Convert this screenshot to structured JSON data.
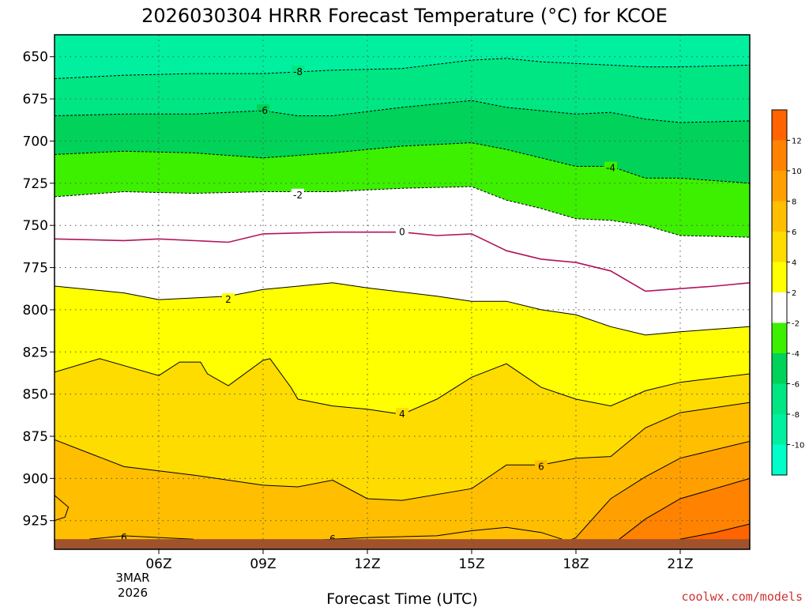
{
  "chart_data": {
    "type": "contour",
    "title": "2026030304 HRRR Forecast Temperature (°C) for KCOE",
    "xlabel": "Forecast Time (UTC)",
    "ylabel": "",
    "credit": "coolwx.com/models",
    "x_ticks": [
      "06Z",
      "09Z",
      "12Z",
      "15Z",
      "18Z",
      "21Z"
    ],
    "x_tick_hours": [
      6,
      9,
      12,
      15,
      18,
      21
    ],
    "x_date_lines": [
      "3MAR",
      "2026"
    ],
    "xlim_hours": [
      3,
      23
    ],
    "y_ticks": [
      650,
      675,
      700,
      725,
      750,
      775,
      800,
      825,
      850,
      875,
      900,
      925
    ],
    "ylim_hpa": [
      637,
      942
    ],
    "ground_hpa": 936,
    "ground_color": "#a0522d",
    "colorbar": {
      "levels": [
        -12,
        -10,
        -8,
        -6,
        -4,
        -2,
        2,
        4,
        6,
        8,
        10,
        12,
        14
      ],
      "tick_labels": [
        "-10",
        "-8",
        "-6",
        "-4",
        "-2",
        "2",
        "4",
        "6",
        "8",
        "10",
        "12"
      ],
      "colors": [
        "#00ffc8",
        "#00f0a0",
        "#00e682",
        "#00d25a",
        "#3cf000",
        "#ffffff",
        "#ffff00",
        "#ffdc00",
        "#ffbe00",
        "#ffa000",
        "#ff8200",
        "#ff6400"
      ]
    },
    "isotherms": [
      {
        "temp": -8,
        "style": "dashed",
        "color": "#000000",
        "label": "-8",
        "label_at": [
          10,
          659
        ],
        "points": [
          [
            3,
            663
          ],
          [
            5,
            661
          ],
          [
            7,
            660
          ],
          [
            9,
            660
          ],
          [
            11,
            658
          ],
          [
            13,
            657
          ],
          [
            15,
            652
          ],
          [
            16,
            651
          ],
          [
            17,
            653
          ],
          [
            19,
            655
          ],
          [
            20,
            656
          ],
          [
            21,
            656
          ],
          [
            23,
            655
          ]
        ]
      },
      {
        "temp": -6,
        "style": "dashed",
        "color": "#000000",
        "label": "-6",
        "label_at": [
          9,
          682
        ],
        "points": [
          [
            3,
            685
          ],
          [
            5,
            684
          ],
          [
            7,
            684
          ],
          [
            9,
            682
          ],
          [
            10,
            685
          ],
          [
            11,
            685
          ],
          [
            13,
            680
          ],
          [
            15,
            676
          ],
          [
            16,
            680
          ],
          [
            18,
            684
          ],
          [
            19,
            683
          ],
          [
            20,
            687
          ],
          [
            21,
            689
          ],
          [
            23,
            688
          ]
        ]
      },
      {
        "temp": -4,
        "style": "dashed",
        "color": "#000000",
        "label": "-4",
        "label_at": [
          19,
          716
        ],
        "points": [
          [
            3,
            708
          ],
          [
            5,
            706
          ],
          [
            7,
            707
          ],
          [
            9,
            710
          ],
          [
            11,
            707
          ],
          [
            12,
            705
          ],
          [
            13,
            703
          ],
          [
            15,
            701
          ],
          [
            16,
            705
          ],
          [
            18,
            715
          ],
          [
            19,
            715
          ],
          [
            20,
            722
          ],
          [
            21,
            722
          ],
          [
            23,
            725
          ]
        ]
      },
      {
        "temp": -2,
        "style": "dashed",
        "color": "#000000",
        "label": "-2",
        "label_at": [
          10,
          732
        ],
        "points": [
          [
            3,
            733
          ],
          [
            5,
            730
          ],
          [
            7,
            731
          ],
          [
            9,
            730
          ],
          [
            11,
            730
          ],
          [
            13,
            728
          ],
          [
            15,
            727
          ],
          [
            16,
            735
          ],
          [
            17,
            740
          ],
          [
            18,
            746
          ],
          [
            19,
            747
          ],
          [
            20,
            750
          ],
          [
            21,
            756
          ],
          [
            23,
            757
          ]
        ]
      },
      {
        "temp": 0,
        "style": "solid",
        "color": "#b0145a",
        "label": "0",
        "label_at": [
          13,
          754
        ],
        "points": [
          [
            3,
            758
          ],
          [
            5,
            759
          ],
          [
            6,
            758
          ],
          [
            8,
            760
          ],
          [
            9,
            755
          ],
          [
            11,
            754
          ],
          [
            13,
            754
          ],
          [
            14,
            756
          ],
          [
            15,
            755
          ],
          [
            16,
            765
          ],
          [
            17,
            770
          ],
          [
            18,
            772
          ],
          [
            19,
            777
          ],
          [
            20,
            789
          ],
          [
            22,
            786
          ],
          [
            23,
            784
          ]
        ]
      },
      {
        "temp": 2,
        "style": "solid",
        "color": "#000000",
        "label": "2",
        "label_at": [
          8,
          794
        ],
        "points": [
          [
            3,
            786
          ],
          [
            5,
            790
          ],
          [
            6,
            794
          ],
          [
            8,
            792
          ],
          [
            9,
            788
          ],
          [
            11,
            784
          ],
          [
            12,
            787
          ],
          [
            14,
            792
          ],
          [
            15,
            795
          ],
          [
            16,
            795
          ],
          [
            17,
            800
          ],
          [
            18,
            803
          ],
          [
            19,
            810
          ],
          [
            20,
            815
          ],
          [
            21,
            813
          ],
          [
            23,
            810
          ]
        ]
      },
      {
        "temp": 4,
        "style": "solid",
        "color": "#000000",
        "label": "4",
        "label_at": [
          13,
          862
        ],
        "points": [
          [
            3,
            837
          ],
          [
            4.3,
            829
          ],
          [
            6,
            839
          ],
          [
            6.6,
            831
          ],
          [
            7.2,
            831
          ],
          [
            7.4,
            838
          ],
          [
            8,
            845
          ],
          [
            9,
            830
          ],
          [
            9.2,
            829
          ],
          [
            9.8,
            846
          ],
          [
            10,
            853
          ],
          [
            11,
            857
          ],
          [
            12,
            859
          ],
          [
            13,
            862
          ],
          [
            14,
            853
          ],
          [
            15,
            840
          ],
          [
            16,
            832
          ],
          [
            17,
            846
          ],
          [
            18,
            853
          ],
          [
            19,
            857
          ],
          [
            20,
            848
          ],
          [
            21,
            843
          ],
          [
            23,
            838
          ]
        ]
      },
      {
        "temp": 6,
        "style": "solid",
        "color": "#000000",
        "label": "6",
        "label_at": [
          17,
          893
        ],
        "points": [
          [
            3,
            877
          ],
          [
            5,
            893
          ],
          [
            7,
            898
          ],
          [
            9,
            904
          ],
          [
            10,
            905
          ],
          [
            11,
            901
          ],
          [
            12,
            912
          ],
          [
            13,
            913
          ],
          [
            15,
            906
          ],
          [
            16,
            892
          ],
          [
            17,
            892
          ],
          [
            18,
            888
          ],
          [
            19,
            887
          ],
          [
            20,
            870
          ],
          [
            21,
            861
          ],
          [
            23,
            855
          ]
        ]
      },
      {
        "temp": 8,
        "style": "solid",
        "color": "#000000",
        "label": "",
        "label_at": [],
        "points": [
          [
            17.5,
            940
          ],
          [
            18,
            935
          ],
          [
            19,
            912
          ],
          [
            20,
            899
          ],
          [
            21,
            888
          ],
          [
            23,
            878
          ]
        ]
      },
      {
        "temp": 10,
        "style": "solid",
        "color": "#000000",
        "label": "",
        "label_at": [],
        "points": [
          [
            19,
            940
          ],
          [
            20,
            924
          ],
          [
            21,
            912
          ],
          [
            23,
            900
          ]
        ]
      },
      {
        "temp": 12,
        "style": "solid",
        "color": "#000000",
        "label": "",
        "label_at": [],
        "points": [
          [
            21,
            936
          ],
          [
            22,
            932
          ],
          [
            23,
            927
          ]
        ]
      }
    ],
    "closed_6C_pockets": [
      {
        "label": "6",
        "label_at": [
          5,
          935
        ],
        "points": [
          [
            4,
            936
          ],
          [
            5,
            934
          ],
          [
            6,
            935
          ],
          [
            7,
            936
          ]
        ]
      },
      {
        "label": "6",
        "label_at": [
          11,
          936
        ],
        "points": [
          [
            10,
            937
          ],
          [
            11,
            936
          ],
          [
            12,
            935
          ],
          [
            14,
            934
          ],
          [
            15,
            931
          ],
          [
            16,
            929
          ],
          [
            17,
            932
          ],
          [
            17.6,
            936
          ]
        ]
      },
      {
        "label": "",
        "label_at": [],
        "points": [
          [
            3,
            910
          ],
          [
            3.4,
            917
          ],
          [
            3.3,
            923
          ],
          [
            3,
            925
          ]
        ]
      }
    ]
  }
}
